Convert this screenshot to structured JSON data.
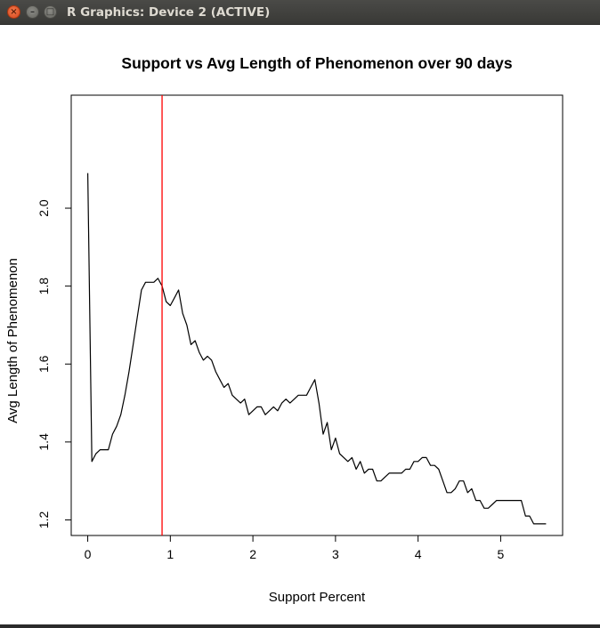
{
  "window": {
    "title": "R Graphics: Device 2 (ACTIVE)",
    "close_glyph": "×",
    "minimize_glyph": "–",
    "maximize_glyph": "□"
  },
  "chart_data": {
    "type": "line",
    "title": "Support vs Avg Length of Phenomenon over 90 days",
    "xlabel": "Support Percent",
    "ylabel": "Avg Length of Phenomenon",
    "xlim": [
      -0.2,
      5.75
    ],
    "ylim": [
      1.16,
      2.29
    ],
    "xticks": [
      0,
      1,
      2,
      3,
      4,
      5
    ],
    "yticks": [
      1.2,
      1.4,
      1.6,
      1.8,
      2.0
    ],
    "xtick_labels": [
      "0",
      "1",
      "2",
      "3",
      "4",
      "5"
    ],
    "ytick_labels": [
      "1.2",
      "1.4",
      "1.6",
      "1.8",
      "2.0"
    ],
    "line_color": "#000000",
    "vline": {
      "x": 0.9,
      "color": "#ff0000"
    },
    "series": [
      {
        "x": [
          0,
          0.05,
          0.1,
          0.15,
          0.2,
          0.25,
          0.3,
          0.35,
          0.4,
          0.45,
          0.5,
          0.55,
          0.6,
          0.65,
          0.7,
          0.75,
          0.8,
          0.85,
          0.9,
          0.95,
          1.0,
          1.05,
          1.1,
          1.15,
          1.2,
          1.25,
          1.3,
          1.35,
          1.4,
          1.45,
          1.5,
          1.55,
          1.6,
          1.65,
          1.7,
          1.75,
          1.8,
          1.85,
          1.9,
          1.95,
          2.0,
          2.05,
          2.1,
          2.15,
          2.2,
          2.25,
          2.3,
          2.35,
          2.4,
          2.45,
          2.5,
          2.55,
          2.6,
          2.65,
          2.7,
          2.75,
          2.8,
          2.85,
          2.9,
          2.95,
          3.0,
          3.05,
          3.1,
          3.15,
          3.2,
          3.25,
          3.3,
          3.35,
          3.4,
          3.45,
          3.5,
          3.55,
          3.6,
          3.65,
          3.7,
          3.75,
          3.8,
          3.85,
          3.9,
          3.95,
          4.0,
          4.05,
          4.1,
          4.15,
          4.2,
          4.25,
          4.3,
          4.35,
          4.4,
          4.45,
          4.5,
          4.55,
          4.6,
          4.65,
          4.7,
          4.75,
          4.8,
          4.85,
          4.9,
          4.95,
          5.0,
          5.05,
          5.1,
          5.15,
          5.2,
          5.25,
          5.3,
          5.35,
          5.4,
          5.45,
          5.5,
          5.55
        ],
        "y": [
          2.09,
          1.35,
          1.37,
          1.38,
          1.38,
          1.38,
          1.42,
          1.44,
          1.47,
          1.52,
          1.58,
          1.65,
          1.72,
          1.79,
          1.81,
          1.81,
          1.81,
          1.82,
          1.8,
          1.76,
          1.75,
          1.77,
          1.79,
          1.73,
          1.7,
          1.65,
          1.66,
          1.63,
          1.61,
          1.62,
          1.61,
          1.58,
          1.56,
          1.54,
          1.55,
          1.52,
          1.51,
          1.5,
          1.51,
          1.47,
          1.48,
          1.49,
          1.49,
          1.47,
          1.48,
          1.49,
          1.48,
          1.5,
          1.51,
          1.5,
          1.51,
          1.52,
          1.52,
          1.52,
          1.54,
          1.56,
          1.5,
          1.42,
          1.45,
          1.38,
          1.41,
          1.37,
          1.36,
          1.35,
          1.36,
          1.33,
          1.35,
          1.32,
          1.33,
          1.33,
          1.3,
          1.3,
          1.31,
          1.32,
          1.32,
          1.32,
          1.32,
          1.33,
          1.33,
          1.35,
          1.35,
          1.36,
          1.36,
          1.34,
          1.34,
          1.33,
          1.3,
          1.27,
          1.27,
          1.28,
          1.3,
          1.3,
          1.27,
          1.28,
          1.25,
          1.25,
          1.23,
          1.23,
          1.24,
          1.25,
          1.25,
          1.25,
          1.25,
          1.25,
          1.25,
          1.25,
          1.21,
          1.21,
          1.19,
          1.19,
          1.19,
          1.19
        ]
      }
    ]
  }
}
